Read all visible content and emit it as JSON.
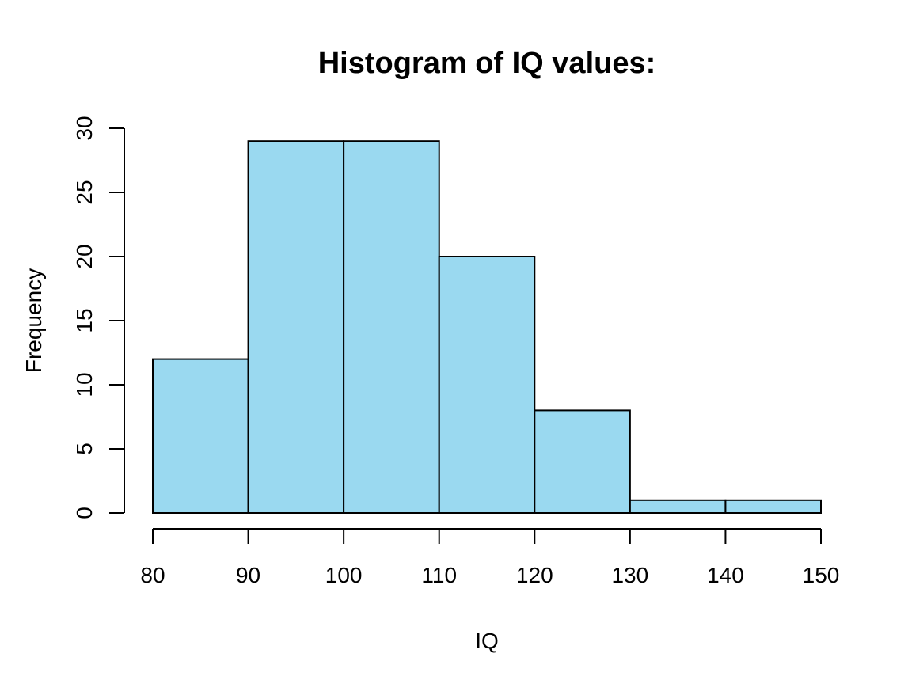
{
  "chart_data": {
    "type": "bar",
    "subtype": "histogram",
    "title": "Histogram of IQ values:",
    "xlabel": "IQ",
    "ylabel": "Frequency",
    "bin_edges": [
      80,
      90,
      100,
      110,
      120,
      130,
      140,
      150
    ],
    "counts": [
      12,
      29,
      29,
      20,
      8,
      1,
      1
    ],
    "x_ticks": [
      80,
      90,
      100,
      110,
      120,
      130,
      140,
      150
    ],
    "y_ticks": [
      0,
      5,
      10,
      15,
      20,
      25,
      30
    ],
    "xlim": [
      80,
      150
    ],
    "ylim": [
      0,
      30
    ],
    "grid": false,
    "legend_position": "none",
    "bar_fill": "#9AD9F0",
    "bar_stroke": "#000000",
    "axis_color": "#000000",
    "text_color": "#000000",
    "background": "#FFFFFF"
  }
}
